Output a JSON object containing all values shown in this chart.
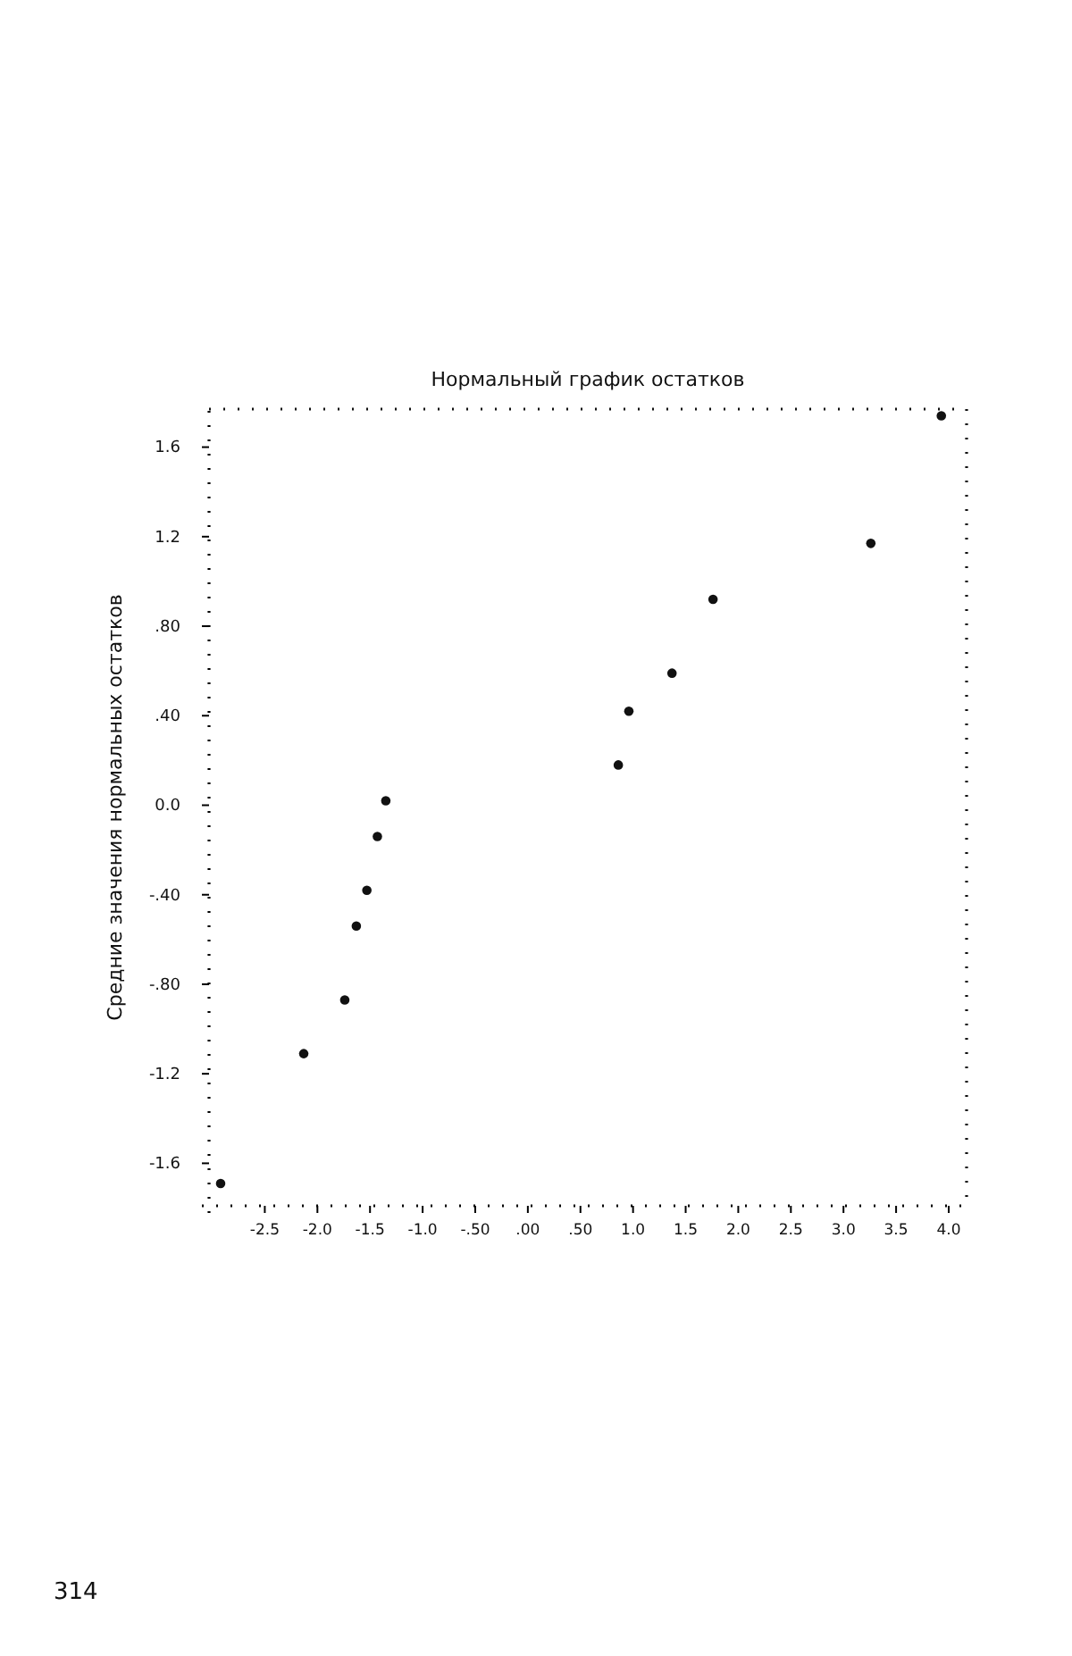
{
  "chart_data": {
    "type": "scatter",
    "title": "Нормальный график остатков",
    "ylabel": "Средние значения нормальных остатков",
    "x": [
      -2.92,
      -2.13,
      -1.74,
      -1.63,
      -1.53,
      -1.43,
      -1.35,
      0.86,
      0.96,
      1.37,
      1.76,
      3.26,
      3.93
    ],
    "values": [
      -1.69,
      -1.11,
      -0.87,
      -0.54,
      -0.38,
      -0.14,
      0.02,
      0.18,
      0.42,
      0.59,
      0.92,
      1.17,
      1.74
    ],
    "color": "#111111",
    "marker": "circle",
    "grid": false,
    "xlim": [
      -3.03,
      4.17
    ],
    "ylim": [
      -1.79,
      1.77
    ],
    "xticks": [
      {
        "value": -2.5,
        "label": "-2.5"
      },
      {
        "value": -2.0,
        "label": "-2.0"
      },
      {
        "value": -1.5,
        "label": "-1.5"
      },
      {
        "value": -1.0,
        "label": "-1.0"
      },
      {
        "value": -0.5,
        "label": "-.50"
      },
      {
        "value": 0,
        "label": ".00"
      },
      {
        "value": 0.5,
        "label": ".50"
      },
      {
        "value": 1.0,
        "label": "1.0"
      },
      {
        "value": 1.5,
        "label": "1.5"
      },
      {
        "value": 2.0,
        "label": "2.0"
      },
      {
        "value": 2.5,
        "label": "2.5"
      },
      {
        "value": 3.0,
        "label": "3.0"
      },
      {
        "value": 3.5,
        "label": "3.5"
      },
      {
        "value": 4.0,
        "label": "4.0"
      }
    ],
    "yticks": [
      {
        "value": -1.6,
        "label": "-1.6"
      },
      {
        "value": -1.2,
        "label": "-1.2"
      },
      {
        "value": -0.8,
        "label": "-.80"
      },
      {
        "value": -0.4,
        "label": "-.40"
      },
      {
        "value": 0,
        "label": "0.0"
      },
      {
        "value": 0.4,
        "label": ".40"
      },
      {
        "value": 0.8,
        "label": ".80"
      },
      {
        "value": 1.2,
        "label": "1.2"
      },
      {
        "value": 1.6,
        "label": "1.6"
      }
    ],
    "annotations": [
      "314"
    ]
  }
}
